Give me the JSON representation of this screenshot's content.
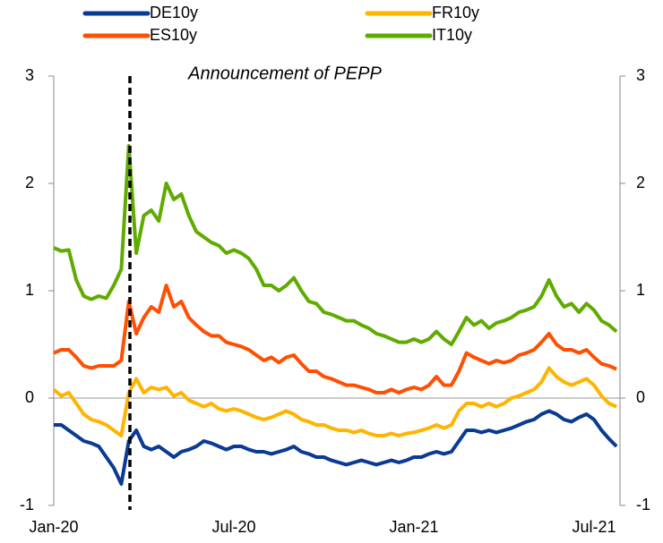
{
  "chart_data": {
    "type": "line",
    "annotation": "Announcement of PEPP",
    "categories": [
      "Jan-20",
      null,
      null,
      null,
      null,
      null,
      null,
      null,
      null,
      null,
      null,
      null,
      null,
      null,
      null,
      null,
      null,
      null,
      null,
      null,
      null,
      null,
      null,
      null,
      "Jul-20",
      null,
      null,
      null,
      null,
      null,
      null,
      null,
      null,
      null,
      null,
      null,
      null,
      null,
      null,
      null,
      null,
      null,
      null,
      null,
      null,
      null,
      null,
      null,
      "Jan-21",
      null,
      null,
      null,
      null,
      null,
      null,
      null,
      null,
      null,
      null,
      null,
      null,
      null,
      null,
      null,
      null,
      null,
      null,
      null,
      null,
      null,
      null,
      null,
      "Jul-21",
      null,
      null,
      null
    ],
    "series": [
      {
        "name": "DE10y",
        "color": "#0a3a94",
        "values": [
          -0.25,
          -0.25,
          -0.3,
          -0.35,
          -0.4,
          -0.42,
          -0.45,
          -0.55,
          -0.65,
          -0.8,
          -0.4,
          -0.3,
          -0.45,
          -0.48,
          -0.45,
          -0.5,
          -0.55,
          -0.5,
          -0.48,
          -0.45,
          -0.4,
          -0.42,
          -0.45,
          -0.48,
          -0.45,
          -0.45,
          -0.48,
          -0.5,
          -0.5,
          -0.52,
          -0.5,
          -0.48,
          -0.45,
          -0.5,
          -0.52,
          -0.55,
          -0.55,
          -0.58,
          -0.6,
          -0.62,
          -0.6,
          -0.58,
          -0.6,
          -0.62,
          -0.6,
          -0.58,
          -0.6,
          -0.58,
          -0.55,
          -0.55,
          -0.52,
          -0.5,
          -0.52,
          -0.5,
          -0.4,
          -0.3,
          -0.3,
          -0.32,
          -0.3,
          -0.32,
          -0.3,
          -0.28,
          -0.25,
          -0.22,
          -0.2,
          -0.15,
          -0.12,
          -0.15,
          -0.2,
          -0.22,
          -0.18,
          -0.15,
          -0.2,
          -0.3,
          -0.38,
          -0.45
        ]
      },
      {
        "name": "FR10y",
        "color": "#ffb400",
        "values": [
          0.08,
          0.02,
          0.05,
          -0.05,
          -0.15,
          -0.2,
          -0.22,
          -0.25,
          -0.3,
          -0.35,
          0.05,
          0.18,
          0.05,
          0.1,
          0.08,
          0.1,
          0.02,
          0.05,
          -0.02,
          -0.05,
          -0.08,
          -0.05,
          -0.1,
          -0.12,
          -0.1,
          -0.12,
          -0.15,
          -0.18,
          -0.2,
          -0.18,
          -0.15,
          -0.12,
          -0.15,
          -0.2,
          -0.22,
          -0.25,
          -0.25,
          -0.28,
          -0.3,
          -0.3,
          -0.32,
          -0.3,
          -0.33,
          -0.35,
          -0.35,
          -0.33,
          -0.35,
          -0.33,
          -0.32,
          -0.3,
          -0.28,
          -0.25,
          -0.28,
          -0.25,
          -0.12,
          -0.05,
          -0.05,
          -0.08,
          -0.05,
          -0.08,
          -0.05,
          0.0,
          0.02,
          0.05,
          0.08,
          0.15,
          0.28,
          0.2,
          0.15,
          0.12,
          0.15,
          0.18,
          0.12,
          0.02,
          -0.05,
          -0.08
        ]
      },
      {
        "name": "ES10y",
        "color": "#ff4f00",
        "values": [
          0.42,
          0.45,
          0.45,
          0.38,
          0.3,
          0.28,
          0.3,
          0.3,
          0.3,
          0.35,
          0.9,
          0.6,
          0.75,
          0.85,
          0.8,
          1.05,
          0.85,
          0.9,
          0.75,
          0.68,
          0.62,
          0.58,
          0.58,
          0.52,
          0.5,
          0.48,
          0.45,
          0.4,
          0.35,
          0.38,
          0.33,
          0.38,
          0.4,
          0.32,
          0.25,
          0.25,
          0.2,
          0.18,
          0.15,
          0.12,
          0.12,
          0.1,
          0.08,
          0.05,
          0.05,
          0.08,
          0.05,
          0.08,
          0.1,
          0.08,
          0.12,
          0.2,
          0.12,
          0.12,
          0.25,
          0.42,
          0.38,
          0.35,
          0.32,
          0.35,
          0.33,
          0.35,
          0.4,
          0.42,
          0.45,
          0.52,
          0.6,
          0.5,
          0.45,
          0.45,
          0.42,
          0.45,
          0.38,
          0.32,
          0.3,
          0.27
        ]
      },
      {
        "name": "IT10y",
        "color": "#5fab00",
        "values": [
          1.4,
          1.37,
          1.38,
          1.1,
          0.95,
          0.92,
          0.95,
          0.93,
          1.05,
          1.2,
          2.35,
          1.35,
          1.7,
          1.75,
          1.65,
          2.0,
          1.85,
          1.9,
          1.7,
          1.55,
          1.5,
          1.45,
          1.42,
          1.35,
          1.38,
          1.35,
          1.3,
          1.2,
          1.05,
          1.05,
          1.0,
          1.05,
          1.12,
          1.0,
          0.9,
          0.88,
          0.8,
          0.78,
          0.75,
          0.72,
          0.72,
          0.68,
          0.65,
          0.6,
          0.58,
          0.55,
          0.52,
          0.52,
          0.55,
          0.52,
          0.55,
          0.62,
          0.55,
          0.5,
          0.62,
          0.75,
          0.68,
          0.72,
          0.65,
          0.7,
          0.72,
          0.75,
          0.8,
          0.82,
          0.85,
          0.95,
          1.1,
          0.95,
          0.85,
          0.88,
          0.8,
          0.88,
          0.82,
          0.72,
          0.68,
          0.62
        ]
      }
    ],
    "ylim": [
      -1,
      3
    ],
    "yticks": [
      -1,
      0,
      1,
      2,
      3
    ],
    "y2lim": [
      -1,
      3
    ],
    "y2ticks": [
      -1,
      0,
      1,
      2,
      3
    ]
  }
}
